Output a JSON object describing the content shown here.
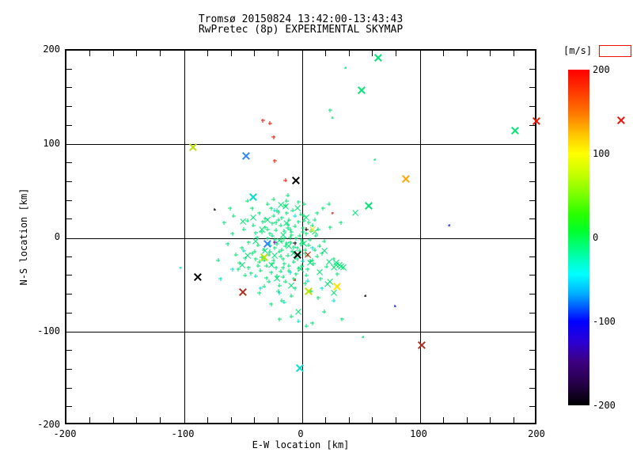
{
  "title": {
    "line1": "Tromsø 20150824 13:42:00-13:43:43",
    "line2": "RwPretec (8p) EXPERIMENTAL SKYMAP"
  },
  "axes": {
    "x": {
      "label": "E-W location [km]",
      "range": [
        -200,
        200
      ],
      "ticks": [
        -200,
        -100,
        0,
        100,
        200
      ],
      "minor_step": 20,
      "grid": [
        -100,
        0,
        100
      ]
    },
    "y": {
      "label": "N-S location [km]",
      "range": [
        -200,
        200
      ],
      "ticks": [
        200,
        100,
        0,
        -100,
        -200
      ],
      "minor_step": 20,
      "grid": [
        100,
        0,
        -100
      ]
    }
  },
  "colorbar": {
    "label": "[m/s]",
    "ticks": [
      200,
      100,
      0,
      -100,
      -200
    ],
    "range": [
      -200,
      200
    ],
    "gradient_stops": [
      "#ff0000 0%",
      "#ff2a00 5%",
      "#ff7700 13%",
      "#ffc100 19%",
      "#ffff00 25%",
      "#c8ff00 31%",
      "#7dff00 37%",
      "#2bff00 43%",
      "#00ff2a 48%",
      "#00ff80 53%",
      "#00ffd5 58%",
      "#00ffff 61%",
      "#00aaff 67%",
      "#0055ff 71%",
      "#0000ff 75%",
      "#2a00d5 81%",
      "#3c0080 87%",
      "#28004d 93%",
      "#000000 100%"
    ]
  },
  "palette": {
    "g": "#00e673",
    "c": "#00dfd0",
    "b": "#2e86ff",
    "db": "#1122cc",
    "k": "#000000",
    "r": "#ee1100",
    "dr": "#b03020",
    "o": "#ffa500",
    "y": "#ffe400",
    "yg": "#b8e400",
    "v": "#5b00b0"
  },
  "chart_data": {
    "type": "scatter",
    "title": "Tromsø 20150824 13:42:00-13:43:43 / RwPretec (8p) EXPERIMENTAL SKYMAP",
    "xlabel": "E-W location [km]",
    "ylabel": "N-S location [km]",
    "xlim": [
      -200,
      200
    ],
    "ylim": [
      -200,
      200
    ],
    "grid": true,
    "color_scale": {
      "label": "[m/s]",
      "min": -200,
      "max": 200,
      "colormap": "rainbow"
    },
    "outliers": [
      [
        66,
        191,
        "g",
        "x"
      ],
      [
        38,
        180,
        "g",
        "d"
      ],
      [
        52,
        156,
        "g",
        "x"
      ],
      [
        25,
        135,
        "g",
        "p"
      ],
      [
        27,
        127,
        "g",
        "d"
      ],
      [
        -32,
        124,
        "r",
        "p"
      ],
      [
        -26,
        121,
        "r",
        "p"
      ],
      [
        -23,
        106,
        "r",
        "p"
      ],
      [
        -91,
        95,
        "yg",
        "x"
      ],
      [
        -46,
        86,
        "b",
        "x"
      ],
      [
        -22,
        81,
        "r",
        "p"
      ],
      [
        -13,
        60,
        "r",
        "p"
      ],
      [
        -4,
        60,
        "k",
        "x"
      ],
      [
        200,
        123,
        "r",
        "x"
      ],
      [
        272,
        124,
        "r",
        "x"
      ],
      [
        182,
        113,
        "g",
        "x"
      ],
      [
        89,
        62,
        "o",
        "x"
      ],
      [
        63,
        82,
        "g",
        "d"
      ],
      [
        -40,
        42,
        "c",
        "x"
      ],
      [
        -73,
        29,
        "k",
        "d"
      ],
      [
        -49,
        16,
        "g",
        "m"
      ],
      [
        58,
        33,
        "g",
        "x"
      ],
      [
        46,
        25,
        "g",
        "m"
      ],
      [
        27,
        25,
        "r",
        "d"
      ],
      [
        126,
        12,
        "db",
        "d"
      ],
      [
        10,
        8,
        "y",
        "m"
      ],
      [
        5,
        8,
        "k",
        "p"
      ],
      [
        -28,
        -8,
        "b",
        "x"
      ],
      [
        -22,
        -6,
        "v",
        "p"
      ],
      [
        -5,
        -7,
        "k",
        "p"
      ],
      [
        -3,
        -19,
        "k",
        "x"
      ],
      [
        -31,
        -22,
        "yg",
        "x"
      ],
      [
        -102,
        -33,
        "c",
        "d"
      ],
      [
        -87,
        -43,
        "k",
        "x"
      ],
      [
        -49,
        -59,
        "dr",
        "x"
      ],
      [
        -34,
        -55,
        "c",
        "p"
      ],
      [
        -5,
        -46,
        "r",
        "d"
      ],
      [
        -1,
        -140,
        "c",
        "x"
      ],
      [
        6,
        -19,
        "r",
        "m"
      ],
      [
        31,
        -53,
        "y",
        "x"
      ],
      [
        23,
        -51,
        "g",
        "m"
      ],
      [
        7,
        -58,
        "yg",
        "x"
      ],
      [
        55,
        -63,
        "k",
        "d"
      ],
      [
        80,
        -74,
        "db",
        "d"
      ],
      [
        28,
        -68,
        "c",
        "p"
      ],
      [
        53,
        -107,
        "g",
        "d"
      ],
      [
        103,
        -116,
        "dr",
        "x"
      ],
      [
        -17,
        34,
        "g",
        "m"
      ],
      [
        -13,
        32,
        "g",
        "m"
      ]
    ],
    "cluster_plus": [
      [
        -14,
        -2
      ],
      [
        -8,
        5
      ],
      [
        -3,
        -12
      ],
      [
        -20,
        -8
      ],
      [
        -11,
        -20
      ],
      [
        2,
        -6
      ],
      [
        -26,
        3
      ],
      [
        -17,
        12
      ],
      [
        -6,
        -27
      ],
      [
        4,
        -18
      ],
      [
        -31,
        -14
      ],
      [
        -23,
        -25
      ],
      [
        -9,
        8
      ],
      [
        -1,
        1
      ],
      [
        -15,
        -33
      ],
      [
        7,
        -9
      ],
      [
        -28,
        -2
      ],
      [
        -19,
        18
      ],
      [
        -4,
        -40
      ],
      [
        10,
        -25
      ],
      [
        -36,
        -9
      ],
      [
        -12,
        25
      ],
      [
        -7,
        -16
      ],
      [
        1,
        -31
      ],
      [
        -24,
        14
      ],
      [
        -33,
        -22
      ],
      [
        -16,
        -5
      ],
      [
        5,
        3
      ],
      [
        -10,
        -36
      ],
      [
        -2,
        16
      ],
      [
        -29,
        -31
      ],
      [
        -21,
        7
      ],
      [
        12,
        -14
      ],
      [
        -5,
        -22
      ],
      [
        -38,
        4
      ],
      [
        -13,
        -10
      ],
      [
        3,
        22
      ],
      [
        -25,
        -38
      ],
      [
        -18,
        -16
      ],
      [
        8,
        -3
      ],
      [
        -41,
        -18
      ],
      [
        -11,
        13
      ],
      [
        -6,
        -45
      ],
      [
        14,
        -21
      ],
      [
        -30,
        10
      ],
      [
        -22,
        -12
      ],
      [
        0,
        -8
      ],
      [
        -35,
        -27
      ],
      [
        -16,
        20
      ],
      [
        6,
        -35
      ],
      [
        -9,
        -1
      ],
      [
        -44,
        -6
      ],
      [
        -14,
        -29
      ],
      [
        2,
        9
      ],
      [
        -27,
        -19
      ],
      [
        -20,
        -42
      ],
      [
        9,
        6
      ],
      [
        -3,
        -24
      ],
      [
        -32,
        16
      ],
      [
        -12,
        -7
      ],
      [
        16,
        -10
      ],
      [
        -24,
        1
      ],
      [
        -7,
        28
      ],
      [
        -47,
        -23
      ],
      [
        -17,
        -37
      ],
      [
        4,
        -14
      ],
      [
        -37,
        -1
      ],
      [
        -10,
        18
      ],
      [
        -1,
        -19
      ],
      [
        11,
        -29
      ],
      [
        -28,
        8
      ],
      [
        -21,
        -33
      ],
      [
        -5,
        11
      ],
      [
        -50,
        -12
      ],
      [
        -15,
        -24
      ],
      [
        7,
        15
      ],
      [
        -34,
        -36
      ],
      [
        -23,
        22
      ],
      [
        1,
        -3
      ],
      [
        -40,
        12
      ],
      [
        -13,
        -48
      ],
      [
        18,
        -18
      ],
      [
        -8,
        2
      ],
      [
        -26,
        -9
      ],
      [
        -19,
        26
      ],
      [
        -2,
        -34
      ],
      [
        13,
        1
      ],
      [
        -31,
        -25
      ],
      [
        -11,
        9
      ],
      [
        -45,
        17
      ],
      [
        -16,
        -14
      ],
      [
        5,
        -41
      ],
      [
        -36,
        -31
      ],
      [
        -22,
        -3
      ],
      [
        0,
        24
      ],
      [
        -52,
        -28
      ],
      [
        -14,
        6
      ],
      [
        8,
        -26
      ],
      [
        -29,
        -44
      ],
      [
        -25,
        30
      ],
      [
        -6,
        -11
      ],
      [
        15,
        8
      ],
      [
        -39,
        -16
      ],
      [
        -18,
        -52
      ],
      [
        3,
        17
      ],
      [
        -33,
        5
      ],
      [
        -10,
        -31
      ],
      [
        20,
        -5
      ],
      [
        -42,
        -39
      ],
      [
        -21,
        15
      ],
      [
        -4,
        -2
      ],
      [
        -48,
        8
      ],
      [
        -17,
        -21
      ],
      [
        10,
        12
      ],
      [
        -27,
        -48
      ],
      [
        -13,
        33
      ],
      [
        -1,
        -15
      ],
      [
        -55,
        -19
      ],
      [
        -24,
        -29
      ],
      [
        6,
        -20
      ],
      [
        -35,
        25
      ],
      [
        -19,
        -58
      ],
      [
        12,
        18
      ],
      [
        -44,
        -33
      ],
      [
        -9,
        -6
      ],
      [
        22,
        -32
      ],
      [
        -30,
        19
      ],
      [
        -15,
        -43
      ],
      [
        2,
        5
      ],
      [
        -58,
        3
      ],
      [
        -26,
        -16
      ],
      [
        17,
        -45
      ],
      [
        -38,
        -24
      ],
      [
        -12,
        38
      ],
      [
        -5,
        -55
      ],
      [
        25,
        10
      ],
      [
        -47,
        -41
      ],
      [
        -20,
        28
      ],
      [
        -8,
        -63
      ],
      [
        14,
        25
      ],
      [
        -62,
        -8
      ],
      [
        -28,
        35
      ],
      [
        4,
        -50
      ],
      [
        -41,
        30
      ],
      [
        -16,
        -68
      ],
      [
        28,
        -24
      ],
      [
        -53,
        -35
      ],
      [
        -23,
        40
      ],
      [
        9,
        -58
      ],
      [
        -65,
        15
      ],
      [
        -31,
        -53
      ],
      [
        19,
        30
      ],
      [
        -11,
        44
      ],
      [
        31,
        -40
      ],
      [
        -57,
        22
      ],
      [
        -35,
        -60
      ],
      [
        24,
        35
      ],
      [
        -70,
        -25
      ],
      [
        15,
        -65
      ],
      [
        -45,
        38
      ],
      [
        34,
        15
      ],
      [
        -25,
        -72
      ],
      [
        -60,
        30
      ],
      [
        20,
        -80
      ],
      [
        35,
        -88
      ],
      [
        10,
        -92
      ],
      [
        -8,
        -85
      ],
      [
        5,
        -95
      ],
      [
        -18,
        -88
      ],
      [
        -2,
        37
      ],
      [
        3,
        35
      ]
    ],
    "cluster_cross": [
      [
        -18,
        -4
      ],
      [
        -6,
        -18
      ],
      [
        -25,
        -30
      ],
      [
        3,
        -8
      ],
      [
        -12,
        14
      ],
      [
        -30,
        -15
      ],
      [
        8,
        -28
      ],
      [
        -20,
        -45
      ],
      [
        -38,
        -5
      ],
      [
        0,
        -35
      ],
      [
        -15,
        2
      ],
      [
        12,
        5
      ],
      [
        -8,
        -52
      ],
      [
        -28,
        18
      ],
      [
        20,
        -15
      ],
      [
        -45,
        -20
      ],
      [
        -10,
        -10
      ],
      [
        5,
        20
      ],
      [
        -22,
        -20
      ],
      [
        -33,
        8
      ],
      [
        25,
        -48
      ],
      [
        30,
        -28
      ],
      [
        -3,
        30
      ],
      [
        -50,
        -30
      ],
      [
        16,
        -38
      ],
      [
        36,
        -33
      ],
      [
        33,
        -30
      ],
      [
        -40,
        20
      ],
      [
        28,
        -60
      ],
      [
        -2,
        -80
      ],
      [
        24,
        -27
      ],
      [
        30,
        -30
      ],
      [
        34,
        -32
      ],
      [
        28,
        -33
      ]
    ],
    "cluster_cyan": [
      [
        -9,
        -38
      ],
      [
        2,
        -26
      ],
      [
        -18,
        -60
      ],
      [
        -27,
        -7
      ],
      [
        6,
        -47
      ],
      [
        -38,
        -42
      ],
      [
        -14,
        -70
      ],
      [
        10,
        -12
      ],
      [
        -48,
        -15
      ],
      [
        -5,
        22
      ],
      [
        -58,
        -35
      ],
      [
        18,
        -55
      ],
      [
        -2,
        -90
      ],
      [
        -22,
        28
      ],
      [
        -68,
        -45
      ]
    ]
  }
}
